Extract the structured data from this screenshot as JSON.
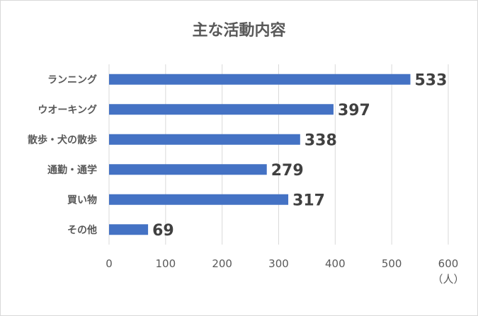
{
  "chart_data": {
    "type": "bar",
    "orientation": "horizontal",
    "title": "主な活動内容",
    "categories": [
      "ランニング",
      "ウオーキング",
      "散歩・犬の散歩",
      "通勤・通学",
      "買い物",
      "その他"
    ],
    "values": [
      533,
      397,
      338,
      279,
      317,
      69
    ],
    "xlim": [
      0,
      600
    ],
    "xticks": [
      "0",
      "100",
      "200",
      "300",
      "400",
      "500",
      "600"
    ],
    "unit": "（人）",
    "grid": true,
    "bar_color": "#4472c4",
    "grid_color": "#d9d9d9",
    "data_labels": true,
    "legend": "none"
  }
}
